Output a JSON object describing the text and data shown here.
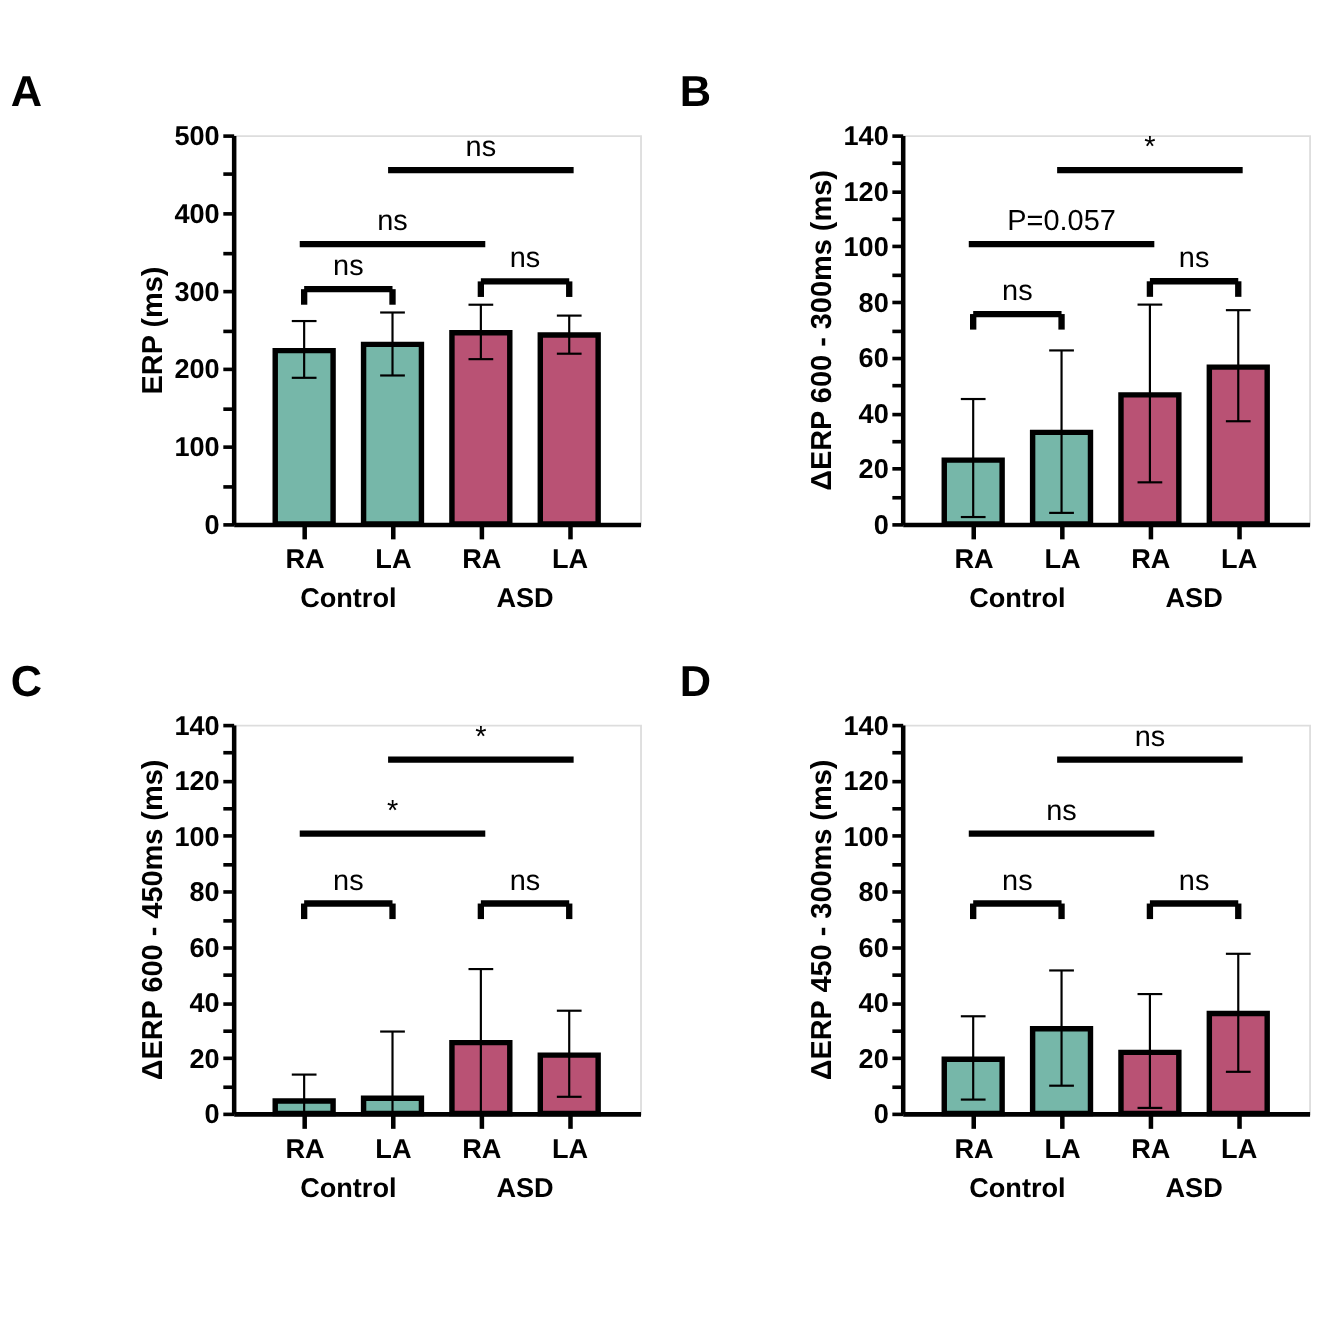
{
  "chart_data": [
    {
      "type": "bar",
      "title": "A",
      "ylabel": "ERP (ms)",
      "categories": [
        "RA",
        "LA",
        "RA",
        "LA"
      ],
      "values": [
        223,
        231,
        246,
        243
      ],
      "errors": [
        [
          188,
          261
        ],
        [
          191,
          272
        ],
        [
          212,
          282
        ],
        [
          219,
          268
        ]
      ],
      "colors": [
        "#76b7a9",
        "#76b7a9",
        "#b95274",
        "#b95274"
      ],
      "ylim": [
        0,
        500
      ],
      "yticks": [
        0,
        {
          "value": 50,
          "label": null
        },
        100,
        {
          "value": 150,
          "label": null
        },
        200,
        {
          "value": 250,
          "label": null
        },
        300,
        {
          "value": 350,
          "label": null
        },
        400,
        {
          "value": 450,
          "label": null
        },
        500
      ],
      "annotations": [
        "ns",
        "ns",
        "ns",
        "ns",
        "Control",
        "ASD"
      ]
    },
    {
      "type": "bar",
      "title": "B",
      "ylabel": "ΔERP 600 - 300ms (ms)",
      "categories": [
        "RA",
        "LA",
        "RA",
        "LA"
      ],
      "values": [
        23,
        33,
        46.5,
        56.5
      ],
      "errors": [
        [
          2.5,
          45
        ],
        [
          4,
          62.5
        ],
        [
          15,
          79
        ],
        [
          37,
          77
        ]
      ],
      "colors": [
        "#76b7a9",
        "#76b7a9",
        "#b95274",
        "#b95274"
      ],
      "ylim": [
        0,
        140
      ],
      "yticks": [
        0,
        {
          "value": 10,
          "label": null
        },
        20,
        {
          "value": 30,
          "label": null
        },
        40,
        {
          "value": 50,
          "label": null
        },
        60,
        {
          "value": 70,
          "label": null
        },
        80,
        {
          "value": 90,
          "label": null
        },
        100,
        {
          "value": 110,
          "label": null
        },
        120,
        {
          "value": 130,
          "label": null
        },
        140
      ],
      "annotations": [
        "ns",
        "ns",
        "P=0.057",
        "*",
        "Control",
        "ASD"
      ]
    },
    {
      "type": "bar",
      "title": "C",
      "ylabel": "ΔERP 600 - 450ms (ms)",
      "categories": [
        "RA",
        "LA",
        "RA",
        "LA"
      ],
      "values": [
        4.5,
        5.5,
        25.5,
        21
      ],
      "errors": [
        [
          0,
          14
        ],
        [
          0,
          29.5
        ],
        [
          0,
          52
        ],
        [
          6,
          37
        ]
      ],
      "colors": [
        "#76b7a9",
        "#76b7a9",
        "#b95274",
        "#b95274"
      ],
      "ylim": [
        0,
        140
      ],
      "yticks": [
        0,
        {
          "value": 10,
          "label": null
        },
        20,
        {
          "value": 30,
          "label": null
        },
        40,
        {
          "value": 50,
          "label": null
        },
        60,
        {
          "value": 70,
          "label": null
        },
        80,
        {
          "value": 90,
          "label": null
        },
        100,
        {
          "value": 110,
          "label": null
        },
        120,
        {
          "value": 130,
          "label": null
        },
        140
      ],
      "annotations": [
        "ns",
        "ns",
        "*",
        "*",
        "Control",
        "ASD"
      ]
    },
    {
      "type": "bar",
      "title": "D",
      "ylabel": "ΔERP 450 - 300ms (ms)",
      "categories": [
        "RA",
        "LA",
        "RA",
        "LA"
      ],
      "values": [
        19.5,
        30.5,
        22,
        36
      ],
      "errors": [
        [
          5,
          35
        ],
        [
          10,
          51.5
        ],
        [
          2,
          43
        ],
        [
          15,
          57.5
        ]
      ],
      "colors": [
        "#76b7a9",
        "#76b7a9",
        "#b95274",
        "#b95274"
      ],
      "ylim": [
        0,
        140
      ],
      "yticks": [
        0,
        {
          "value": 10,
          "label": null
        },
        20,
        {
          "value": 30,
          "label": null
        },
        40,
        {
          "value": 50,
          "label": null
        },
        60,
        {
          "value": 70,
          "label": null
        },
        80,
        {
          "value": 90,
          "label": null
        },
        100,
        {
          "value": 110,
          "label": null
        },
        120,
        {
          "value": 130,
          "label": null
        },
        140
      ],
      "annotations": [
        "ns",
        "ns",
        "ns",
        "ns",
        "Control",
        "ASD"
      ]
    }
  ]
}
